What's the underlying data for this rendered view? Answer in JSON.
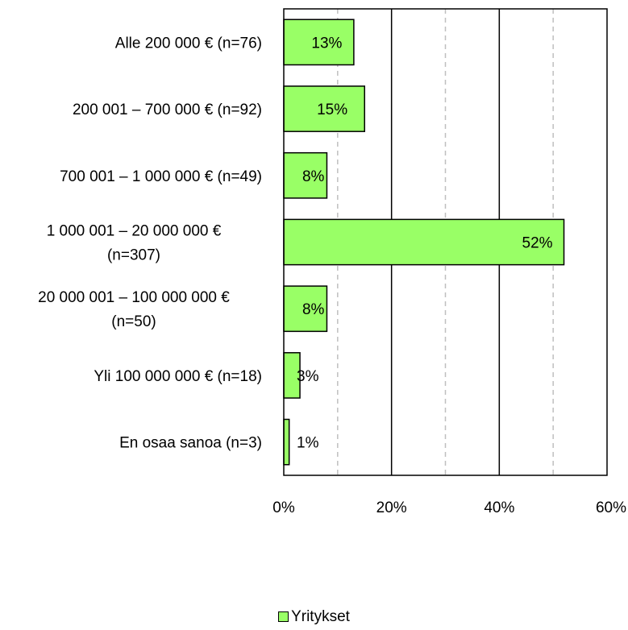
{
  "chart_data": {
    "type": "bar",
    "orientation": "horizontal",
    "categories": [
      [
        "Alle 200 000 €  (n=76)"
      ],
      [
        "200 001 – 700 000 € (n=92)"
      ],
      [
        "700 001 – 1 000 000 € (n=49)"
      ],
      [
        "1 000 001 – 20 000 000 €",
        "(n=307)"
      ],
      [
        "20 000 001 – 100 000 000 €",
        "(n=50)"
      ],
      [
        "Yli 100 000 000 € (n=18)"
      ],
      [
        "En osaa sanoa (n=3)"
      ]
    ],
    "series": [
      {
        "name": "Yritykset",
        "values": [
          13,
          15,
          8,
          52,
          8,
          3,
          1
        ],
        "labels": [
          "13%",
          "15%",
          "8%",
          "52%",
          "8%",
          "3%",
          "1%"
        ]
      }
    ],
    "xlim": [
      0,
      60
    ],
    "xticks": [
      0,
      20,
      40,
      60
    ],
    "xtick_labels": [
      "0%",
      "20%",
      "40%",
      "60%"
    ],
    "minor_gridlines": [
      10,
      30,
      50
    ],
    "major_gridlines": [
      20,
      40
    ],
    "legend_position": "bottom",
    "colors": {
      "bar_fill": "#99FF66",
      "bar_stroke": "#000000",
      "major_grid": "#000000",
      "minor_grid": "#BFBFBF"
    }
  },
  "legend": {
    "label": "Yritykset"
  }
}
